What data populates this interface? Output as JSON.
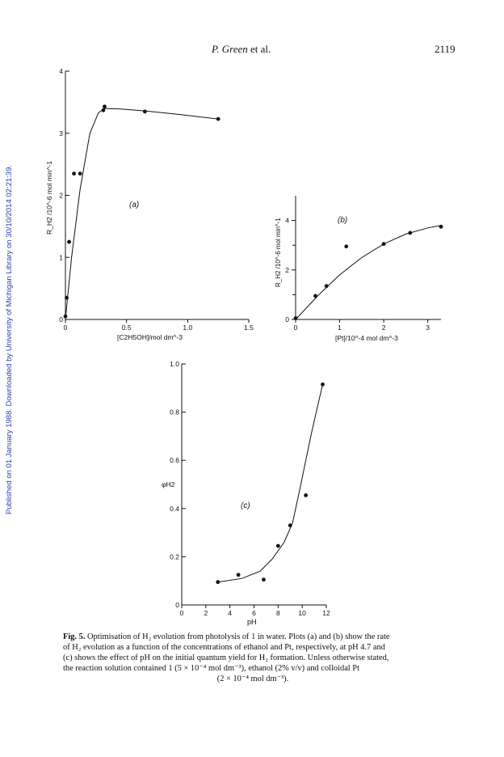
{
  "header": {
    "authors": "P. Green",
    "etal": "et al.",
    "page_number": "2119"
  },
  "side_note": "Published on 01 January 1988. Downloaded by University of Michigan Library on 30/10/2014 02:21:39.",
  "figures": {
    "a": {
      "panel_label": "(a)",
      "ylabel": "R_H2 /10^-6 mol min^-1",
      "xlabel": "[C2H5OH]/mol dm^-3"
    },
    "b": {
      "panel_label": "(b)",
      "ylabel": "R_H2 /10^-6 mol min^-1",
      "xlabel": "[Pt]/10^-4 mol dm^-3"
    },
    "c": {
      "panel_label": "(c)",
      "ylabel": "φH2",
      "xlabel": "pH"
    }
  },
  "chart_data": [
    {
      "id": "a",
      "type": "scatter",
      "title": "",
      "xlabel": "[C2H5OH]/mol dm^-3",
      "ylabel": "R_H2/10^-6 mol min^-1",
      "xlim": [
        0,
        1.5
      ],
      "ylim": [
        0,
        4
      ],
      "xticks": [
        "0",
        "0.5",
        "1.0",
        "1.5"
      ],
      "yticks": [
        "0",
        "1",
        "2",
        "3",
        "4"
      ],
      "points": [
        {
          "x": 0.0,
          "y": 0.05
        },
        {
          "x": 0.01,
          "y": 0.35
        },
        {
          "x": 0.03,
          "y": 1.25
        },
        {
          "x": 0.07,
          "y": 2.35
        },
        {
          "x": 0.12,
          "y": 2.35
        },
        {
          "x": 0.31,
          "y": 3.37
        },
        {
          "x": 0.32,
          "y": 3.43
        },
        {
          "x": 0.65,
          "y": 3.35
        },
        {
          "x": 1.25,
          "y": 3.23
        }
      ],
      "curve": [
        [
          0,
          0
        ],
        [
          0.05,
          1.0
        ],
        [
          0.12,
          2.1
        ],
        [
          0.2,
          3.0
        ],
        [
          0.27,
          3.33
        ],
        [
          0.32,
          3.4
        ],
        [
          0.45,
          3.39
        ],
        [
          0.65,
          3.36
        ],
        [
          0.9,
          3.31
        ],
        [
          1.25,
          3.23
        ]
      ],
      "grid": false
    },
    {
      "id": "b",
      "type": "scatter",
      "title": "",
      "xlabel": "[Pt]/10^-4 mol dm^-3",
      "ylabel": "R_H2/10^-6 mol min^-1",
      "xlim": [
        0,
        3.3
      ],
      "ylim": [
        0,
        5
      ],
      "xticks": [
        "0",
        "1",
        "2",
        "3"
      ],
      "yticks": [
        "0",
        "2",
        "4"
      ],
      "points": [
        {
          "x": 0.0,
          "y": 0.05
        },
        {
          "x": 0.45,
          "y": 0.95
        },
        {
          "x": 0.7,
          "y": 1.35
        },
        {
          "x": 1.15,
          "y": 2.95
        },
        {
          "x": 2.0,
          "y": 3.05
        },
        {
          "x": 2.6,
          "y": 3.5
        },
        {
          "x": 3.3,
          "y": 3.75
        }
      ],
      "curve": [
        [
          0,
          0
        ],
        [
          0.5,
          0.95
        ],
        [
          1.0,
          1.8
        ],
        [
          1.5,
          2.5
        ],
        [
          2.0,
          3.05
        ],
        [
          2.5,
          3.45
        ],
        [
          3.0,
          3.7
        ],
        [
          3.3,
          3.8
        ]
      ],
      "grid": false
    },
    {
      "id": "c",
      "type": "scatter",
      "title": "",
      "xlabel": "pH",
      "ylabel": "φH2",
      "xlim": [
        0,
        12
      ],
      "ylim": [
        0,
        1.0
      ],
      "xticks": [
        "0",
        "2",
        "4",
        "6",
        "8",
        "10",
        "12"
      ],
      "yticks": [
        "0",
        "0.2",
        "0.4",
        "0.6",
        "0.8",
        "1.0"
      ],
      "points": [
        {
          "x": 3.0,
          "y": 0.095
        },
        {
          "x": 4.7,
          "y": 0.125
        },
        {
          "x": 6.8,
          "y": 0.105
        },
        {
          "x": 8.0,
          "y": 0.245
        },
        {
          "x": 9.0,
          "y": 0.33
        },
        {
          "x": 10.3,
          "y": 0.455
        },
        {
          "x": 11.7,
          "y": 0.915
        }
      ],
      "curve": [
        [
          3.0,
          0.095
        ],
        [
          5.0,
          0.11
        ],
        [
          6.5,
          0.14
        ],
        [
          7.5,
          0.19
        ],
        [
          8.5,
          0.26
        ],
        [
          9.2,
          0.34
        ],
        [
          9.8,
          0.48
        ],
        [
          10.3,
          0.6
        ],
        [
          10.8,
          0.72
        ],
        [
          11.3,
          0.83
        ],
        [
          11.7,
          0.915
        ]
      ],
      "grid": false
    }
  ],
  "caption": {
    "label": "Fig. 5.",
    "line1": "Optimisation of H₂ evolution from photolysis of 1 in water. Plots (a) and (b) show the rate",
    "line2": "of H₂ evolution as a function of the concentrations of ethanol and Pt, respectively, at pH 4.7 and",
    "line3": "(c) shows the effect of pH on the initial quantum yield for H₂ formation. Unless otherwise stated,",
    "line4": "the reaction solution contained 1 (5 × 10⁻⁴ mol dm⁻³), ethanol (2% v/v) and colloidal Pt",
    "line5": "(2 × 10⁻⁴ mol dm⁻³)."
  }
}
